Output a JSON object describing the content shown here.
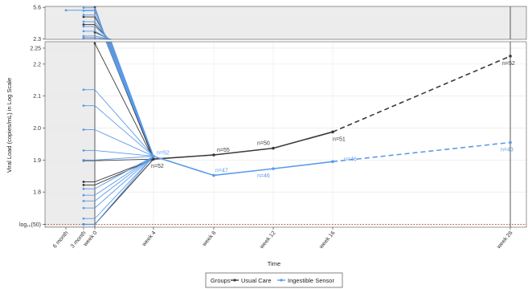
{
  "chart_data": {
    "type": "line",
    "xlabel": "Time",
    "ylabel": "Viral Load (copies/mL) in Log Scale",
    "x_ticks": [
      "6 month",
      "3 month",
      "week 0",
      "week 4",
      "week 8",
      "week 12",
      "week 16",
      "week 28"
    ],
    "top_panel": {
      "ylim": [
        2.25,
        5.7
      ],
      "y_ticks": [
        "5.6",
        "2.3"
      ]
    },
    "main_panel": {
      "ylim": [
        1.69,
        2.27
      ],
      "y_ticks": [
        "2.25",
        "2.2",
        "2.1",
        "2.0",
        "1.9",
        "1.8",
        "log₁₀(50)"
      ],
      "y_tick_values": [
        2.25,
        2.2,
        2.1,
        2.0,
        1.9,
        1.8,
        1.699
      ],
      "reference_line": 1.699
    },
    "legend": {
      "title": "Groups",
      "position": "bottom"
    },
    "series": [
      {
        "name": "Usual Care",
        "color": "#3a3a3a",
        "x": [
          "week 4",
          "week 8",
          "week 12",
          "week 16",
          "week 28"
        ],
        "values": [
          1.903,
          1.916,
          1.937,
          1.988,
          2.225
        ],
        "n_labels": [
          "n=52",
          "n=55",
          "n=50",
          "n=51",
          "n=52"
        ],
        "dashed_from": "week 16"
      },
      {
        "name": "Ingestible Sensor",
        "color": "#5b9bea",
        "x": [
          "week 4",
          "week 8",
          "week 12",
          "week 16",
          "week 28"
        ],
        "values": [
          1.912,
          1.852,
          1.873,
          1.895,
          1.955
        ],
        "n_labels": [
          "n=52",
          "n=47",
          "n=46",
          "n=46",
          "n=43"
        ],
        "dashed_from": "week 16"
      }
    ],
    "individual_baselines": {
      "Usual Care": {
        "main": [
          {
            "from": "week 0",
            "y": 2.265
          },
          {
            "from": "3 month",
            "y": 1.898
          },
          {
            "from": "3 month",
            "y": 1.832
          },
          {
            "from": "3 month",
            "y": 1.822
          },
          {
            "from": "3 month",
            "y": 1.699
          },
          {
            "from": "3 month",
            "y": 1.699
          }
        ],
        "top": [
          {
            "from": "week 0",
            "y": 5.62
          },
          {
            "from": "3 month",
            "y": 4.6
          },
          {
            "from": "3 month",
            "y": 3.8
          },
          {
            "from": "week 0",
            "y": 3.0
          },
          {
            "from": "3 month",
            "y": 2.4
          }
        ]
      },
      "Ingestible Sensor": {
        "main": [
          {
            "from": "3 month",
            "y": 2.12
          },
          {
            "from": "3 month",
            "y": 2.07
          },
          {
            "from": "3 month",
            "y": 1.995
          },
          {
            "from": "3 month",
            "y": 1.93
          },
          {
            "from": "3 month",
            "y": 1.9
          },
          {
            "from": "3 month",
            "y": 1.81
          },
          {
            "from": "3 month",
            "y": 1.79
          },
          {
            "from": "3 month",
            "y": 1.772
          },
          {
            "from": "3 month",
            "y": 1.75
          },
          {
            "from": "3 month",
            "y": 1.717
          },
          {
            "from": "3 month",
            "y": 1.699
          }
        ],
        "top": [
          {
            "from": "6 month",
            "y": 5.3
          },
          {
            "from": "3 month",
            "y": 5.55
          },
          {
            "from": "3 month",
            "y": 5.25
          },
          {
            "from": "3 month",
            "y": 4.8
          },
          {
            "from": "3 month",
            "y": 4.1
          },
          {
            "from": "3 month",
            "y": 3.6
          },
          {
            "from": "3 month",
            "y": 3.1
          },
          {
            "from": "3 month",
            "y": 2.6
          },
          {
            "from": "3 month",
            "y": 2.4
          }
        ]
      }
    }
  }
}
